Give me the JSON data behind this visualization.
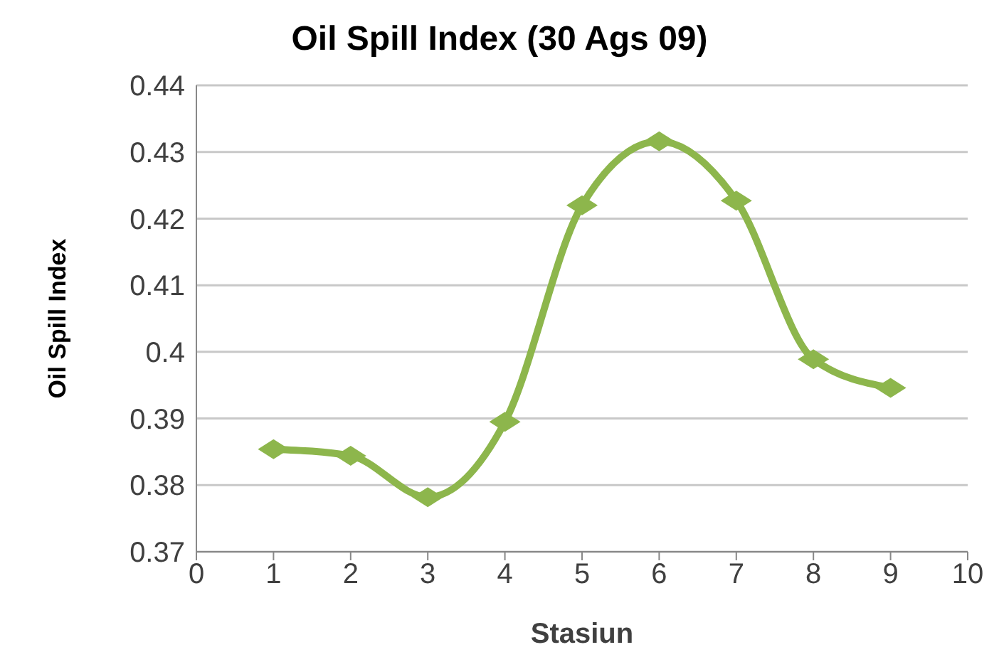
{
  "chart_data": {
    "type": "line",
    "title": "Oil Spill Index (30 Ags 09)",
    "xlabel": "Stasiun",
    "ylabel": "Oil Spill Index",
    "x": [
      1,
      2,
      3,
      4,
      5,
      6,
      7,
      8,
      9
    ],
    "series": [
      {
        "color": "#8db64c",
        "values": [
          0.3854,
          0.3844,
          0.3782,
          0.3895,
          0.422,
          0.4316,
          0.4227,
          0.3989,
          0.3946
        ]
      }
    ],
    "xlim": [
      0,
      10
    ],
    "xticks": [
      0,
      1,
      2,
      3,
      4,
      5,
      6,
      7,
      8,
      9,
      10
    ],
    "ylim": [
      0.37,
      0.44
    ],
    "yticks": [
      0.37,
      0.38,
      0.39,
      0.4,
      0.41,
      0.42,
      0.43,
      0.44
    ],
    "grid": "y",
    "legend": false,
    "marker": "diamond",
    "line_style": "solid"
  }
}
